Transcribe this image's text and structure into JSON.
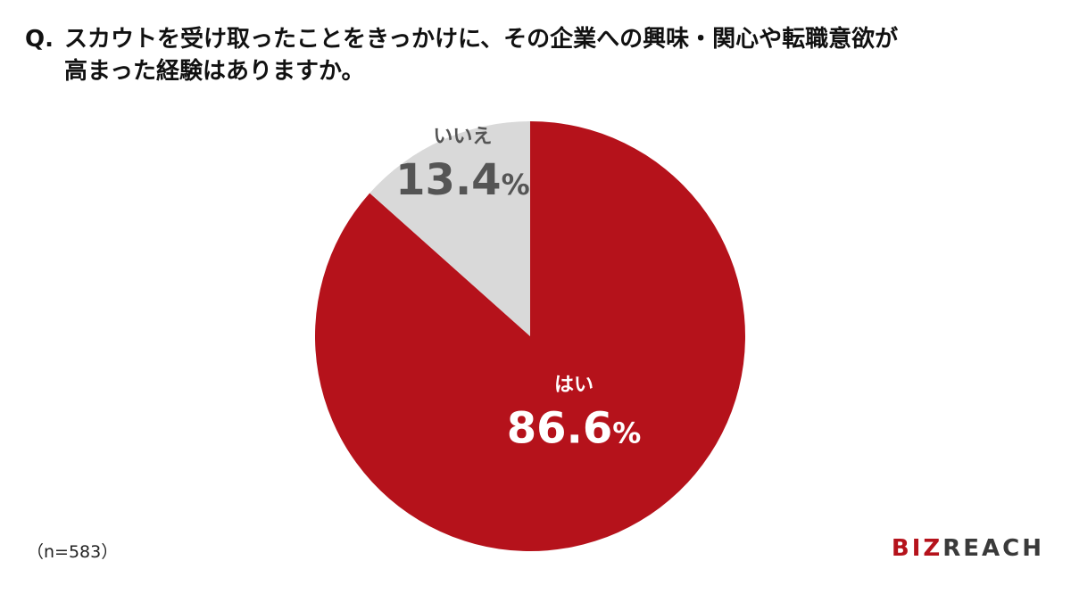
{
  "question": {
    "prefix": "Q.",
    "line1": "スカウトを受け取ったことをきっかけに、その企業への興味・関心や転職意欲が",
    "line2": "高まった経験はありますか。"
  },
  "footnote": "（n=583）",
  "logo": {
    "part1": "BIZ",
    "part2": "REACH"
  },
  "colors": {
    "yes": "#b5121b",
    "no": "#d9d9d9",
    "yes_text": "#ffffff",
    "no_text": "#555555"
  },
  "chart_data": {
    "type": "pie",
    "title": "",
    "start": "12 o'clock, clockwise",
    "slices": [
      {
        "label": "はい",
        "value": 86.6,
        "display": "86.6",
        "unit": "%",
        "color": "#b5121b"
      },
      {
        "label": "いいえ",
        "value": 13.4,
        "display": "13.4",
        "unit": "%",
        "color": "#d9d9d9"
      }
    ]
  }
}
